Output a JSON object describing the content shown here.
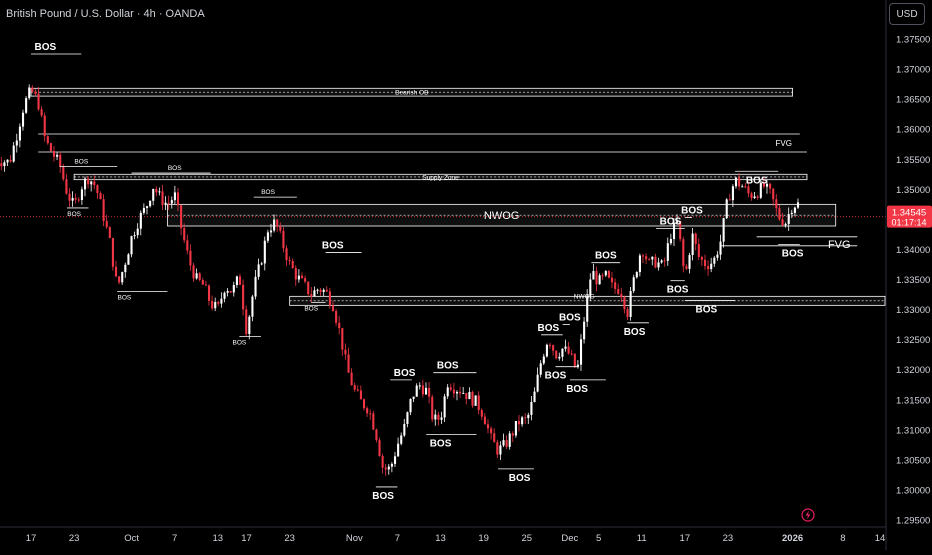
{
  "header": {
    "title": "British Pound / U.S. Dollar · 4h · OANDA",
    "currency": "USD"
  },
  "colors": {
    "background": "#000000",
    "up": "#ffffff",
    "down": "#f23645",
    "line": "#ffffff",
    "price_label_bg": "#f23645",
    "axis_text": "#d1d4dc",
    "flash_icon": "#e91e63"
  },
  "icons": [
    "flash-icon"
  ],
  "chart_data": {
    "type": "candlestick",
    "title": "British Pound / U.S. Dollar · 4h · OANDA",
    "y_axis": {
      "ticks": [
        1.375,
        1.37,
        1.365,
        1.36,
        1.355,
        1.35,
        1.34,
        1.335,
        1.33,
        1.325,
        1.32,
        1.315,
        1.31,
        1.305,
        1.3,
        1.295
      ],
      "tick_labels": [
        "1.37500",
        "1.37000",
        "1.36500",
        "1.36000",
        "1.35500",
        "1.35000",
        "1.34000",
        "1.33500",
        "1.33000",
        "1.32500",
        "1.32000",
        "1.31500",
        "1.31000",
        "1.30500",
        "1.30000",
        "1.29500"
      ],
      "range": [
        1.2942,
        1.3785
      ]
    },
    "x_axis": {
      "tick_labels": [
        "17",
        "23",
        "Oct",
        "7",
        "13",
        "17",
        "23",
        "Nov",
        "7",
        "13",
        "19",
        "25",
        "Dec",
        "5",
        "11",
        "17",
        "23",
        "2026",
        "8",
        "14"
      ],
      "tick_dates": [
        "2025-09-17",
        "2025-09-23",
        "2025-10-01",
        "2025-10-07",
        "2025-10-13",
        "2025-10-17",
        "2025-10-23",
        "2025-11-01",
        "2025-11-07",
        "2025-11-13",
        "2025-11-19",
        "2025-11-25",
        "2025-12-01",
        "2025-12-05",
        "2025-12-11",
        "2025-12-17",
        "2025-12-23",
        "2026-01-01",
        "2026-01-08",
        "2026-01-14"
      ],
      "bold_labels": [
        "2026"
      ]
    },
    "current_price": {
      "value": 1.34545,
      "label": "1.34545",
      "countdown": "01:17:14"
    },
    "path": [
      [
        "2025-09-12",
        1.355
      ],
      [
        "2025-09-14",
        1.3545
      ],
      [
        "2025-09-15",
        1.359
      ],
      [
        "2025-09-16",
        1.364
      ],
      [
        "2025-09-17",
        1.3665
      ],
      [
        "2025-09-18",
        1.3645
      ],
      [
        "2025-09-19",
        1.358
      ],
      [
        "2025-09-21",
        1.354
      ],
      [
        "2025-09-22",
        1.3495
      ],
      [
        "2025-09-23",
        1.347
      ],
      [
        "2025-09-24",
        1.3505
      ],
      [
        "2025-09-25",
        1.352
      ],
      [
        "2025-09-26",
        1.3505
      ],
      [
        "2025-09-27",
        1.346
      ],
      [
        "2025-09-28",
        1.341
      ],
      [
        "2025-09-29",
        1.3335
      ],
      [
        "2025-09-30",
        1.3375
      ],
      [
        "2025-10-01",
        1.342
      ],
      [
        "2025-10-02",
        1.345
      ],
      [
        "2025-10-03",
        1.347
      ],
      [
        "2025-10-04",
        1.3505
      ],
      [
        "2025-10-05",
        1.3485
      ],
      [
        "2025-10-06",
        1.3475
      ],
      [
        "2025-10-07",
        1.349
      ],
      [
        "2025-10-08",
        1.343
      ],
      [
        "2025-10-09",
        1.338
      ],
      [
        "2025-10-10",
        1.335
      ],
      [
        "2025-10-11",
        1.334
      ],
      [
        "2025-10-12",
        1.331
      ],
      [
        "2025-10-13",
        1.33
      ],
      [
        "2025-10-14",
        1.334
      ],
      [
        "2025-10-15",
        1.333
      ],
      [
        "2025-10-16",
        1.3355
      ],
      [
        "2025-10-17",
        1.3265
      ],
      [
        "2025-10-18",
        1.3335
      ],
      [
        "2025-10-19",
        1.338
      ],
      [
        "2025-10-20",
        1.3435
      ],
      [
        "2025-10-21",
        1.3445
      ],
      [
        "2025-10-22",
        1.341
      ],
      [
        "2025-10-23",
        1.3375
      ],
      [
        "2025-10-24",
        1.3355
      ],
      [
        "2025-10-25",
        1.334
      ],
      [
        "2025-10-26",
        1.3325
      ],
      [
        "2025-10-27",
        1.3335
      ],
      [
        "2025-10-28",
        1.333
      ],
      [
        "2025-10-29",
        1.331
      ],
      [
        "2025-10-30",
        1.326
      ],
      [
        "2025-10-31",
        1.32
      ],
      [
        "2025-11-01",
        1.3165
      ],
      [
        "2025-11-02",
        1.3145
      ],
      [
        "2025-11-03",
        1.3135
      ],
      [
        "2025-11-04",
        1.3095
      ],
      [
        "2025-11-05",
        1.3035
      ],
      [
        "2025-11-06",
        1.3035
      ],
      [
        "2025-11-07",
        1.3075
      ],
      [
        "2025-11-08",
        1.3105
      ],
      [
        "2025-11-09",
        1.3155
      ],
      [
        "2025-11-10",
        1.3175
      ],
      [
        "2025-11-11",
        1.3165
      ],
      [
        "2025-11-12",
        1.3115
      ],
      [
        "2025-11-13",
        1.312
      ],
      [
        "2025-11-14",
        1.318
      ],
      [
        "2025-11-15",
        1.317
      ],
      [
        "2025-11-16",
        1.3165
      ],
      [
        "2025-11-17",
        1.3155
      ],
      [
        "2025-11-18",
        1.3145
      ],
      [
        "2025-11-19",
        1.3125
      ],
      [
        "2025-11-20",
        1.3085
      ],
      [
        "2025-11-21",
        1.3065
      ],
      [
        "2025-11-22",
        1.3075
      ],
      [
        "2025-11-23",
        1.3095
      ],
      [
        "2025-11-24",
        1.3115
      ],
      [
        "2025-11-25",
        1.3115
      ],
      [
        "2025-11-26",
        1.3155
      ],
      [
        "2025-11-27",
        1.3215
      ],
      [
        "2025-11-28",
        1.3255
      ],
      [
        "2025-11-29",
        1.3225
      ],
      [
        "2025-11-30",
        1.3235
      ],
      [
        "2025-12-01",
        1.3225
      ],
      [
        "2025-12-02",
        1.3195
      ],
      [
        "2025-12-03",
        1.3285
      ],
      [
        "2025-12-04",
        1.3365
      ],
      [
        "2025-12-05",
        1.3345
      ],
      [
        "2025-12-06",
        1.3355
      ],
      [
        "2025-12-07",
        1.3335
      ],
      [
        "2025-12-08",
        1.3335
      ],
      [
        "2025-12-09",
        1.3295
      ],
      [
        "2025-12-10",
        1.3355
      ],
      [
        "2025-12-11",
        1.3405
      ],
      [
        "2025-12-12",
        1.3375
      ],
      [
        "2025-12-13",
        1.338
      ],
      [
        "2025-12-14",
        1.337
      ],
      [
        "2025-12-15",
        1.3425
      ],
      [
        "2025-12-16",
        1.3445
      ],
      [
        "2025-12-17",
        1.335
      ],
      [
        "2025-12-18",
        1.3425
      ],
      [
        "2025-12-19",
        1.3385
      ],
      [
        "2025-12-20",
        1.3375
      ],
      [
        "2025-12-21",
        1.338
      ],
      [
        "2025-12-22",
        1.3415
      ],
      [
        "2025-12-23",
        1.3485
      ],
      [
        "2025-12-24",
        1.3515
      ],
      [
        "2025-12-25",
        1.3505
      ],
      [
        "2025-12-26",
        1.349
      ],
      [
        "2025-12-27",
        1.3495
      ],
      [
        "2025-12-28",
        1.3505
      ],
      [
        "2025-12-29",
        1.349
      ],
      [
        "2025-12-30",
        1.3455
      ],
      [
        "2025-12-31",
        1.3445
      ],
      [
        "2026-01-01",
        1.3475
      ]
    ],
    "zones": [
      {
        "name": "bearish-ob-zone",
        "label": "Bearish OB",
        "x": [
          "2025-09-17",
          "2026-01-01"
        ],
        "y": [
          1.3655,
          1.3668
        ],
        "dashed_mid": true
      },
      {
        "name": "supply-zone",
        "label": "Supply Zone",
        "x": [
          "2025-09-23",
          "2026-01-03"
        ],
        "y": [
          1.3516,
          1.3525
        ],
        "dashed_mid": true
      },
      {
        "name": "nwog-zone",
        "label": "NWOG",
        "x": [
          "2025-10-06",
          "2026-01-07"
        ],
        "y": [
          1.3439,
          1.3475
        ],
        "dashed_mid": true
      },
      {
        "name": "nwog-small-zone",
        "label": "NWOG",
        "x": [
          "2025-10-23",
          "2026-01-15"
        ],
        "y": [
          1.3307,
          1.3322
        ],
        "dashed_mid": true
      }
    ],
    "lines": [
      {
        "name": "fvg-line-upper",
        "label": "FVG",
        "x": [
          "2025-09-18",
          "2026-01-02"
        ],
        "y": 1.3592
      },
      {
        "name": "fvg-line-upper-2",
        "label": "",
        "x": [
          "2025-09-18",
          "2026-01-03"
        ],
        "y": 1.3562
      },
      {
        "name": "fvg-line-lower",
        "label": "FVG",
        "x": [
          "2025-12-27",
          "2026-01-10"
        ],
        "y": 1.3421
      },
      {
        "name": "fvg-line-lower-2",
        "label": "",
        "x": [
          "2025-12-22",
          "2026-01-10"
        ],
        "y": 1.3406
      }
    ],
    "bos_markers": [
      {
        "label": "BOS",
        "x": [
          "2025-09-17",
          "2025-09-24"
        ],
        "y": 1.3725,
        "text_at": "2025-09-19",
        "pos": "above",
        "size": "large"
      },
      {
        "label": "BOS",
        "x": [
          "2025-09-21",
          "2025-09-29"
        ],
        "y": 1.3538,
        "text_at": "2025-09-24",
        "pos": "above",
        "size": "small"
      },
      {
        "label": "BOS",
        "x": [
          "2025-09-22",
          "2025-09-25"
        ],
        "y": 1.3469,
        "text_at": "2025-09-23",
        "pos": "below",
        "size": "small"
      },
      {
        "label": "BOS",
        "x": [
          "2025-10-01",
          "2025-10-12"
        ],
        "y": 1.3527,
        "text_at": "2025-10-07",
        "pos": "above",
        "size": "small"
      },
      {
        "label": "BOS",
        "x": [
          "2025-09-29",
          "2025-10-06"
        ],
        "y": 1.333,
        "text_at": "2025-09-30",
        "pos": "below",
        "size": "small"
      },
      {
        "label": "BOS",
        "x": [
          "2025-10-18",
          "2025-10-24"
        ],
        "y": 1.3487,
        "text_at": "2025-10-20",
        "pos": "above",
        "size": "small"
      },
      {
        "label": "BOS",
        "x": [
          "2025-10-16",
          "2025-10-19"
        ],
        "y": 1.3255,
        "text_at": "2025-10-16",
        "pos": "below",
        "size": "small"
      },
      {
        "label": "BOS",
        "x": [
          "2025-10-28",
          "2025-11-02"
        ],
        "y": 1.3395,
        "text_at": "2025-10-29",
        "pos": "above",
        "size": "large"
      },
      {
        "label": "BOS",
        "x": [
          "2025-10-26",
          "2025-10-28"
        ],
        "y": 1.3312,
        "text_at": "2025-10-26",
        "pos": "below",
        "size": "small"
      },
      {
        "label": "BOS",
        "x": [
          "2025-11-06",
          "2025-11-09"
        ],
        "y": 1.3183,
        "text_at": "2025-11-08",
        "pos": "above",
        "size": "large"
      },
      {
        "label": "BOS",
        "x": [
          "2025-11-04",
          "2025-11-07"
        ],
        "y": 1.3005,
        "text_at": "2025-11-05",
        "pos": "below",
        "size": "large"
      },
      {
        "label": "BOS",
        "x": [
          "2025-11-12",
          "2025-11-18"
        ],
        "y": 1.3195,
        "text_at": "2025-11-14",
        "pos": "above",
        "size": "large"
      },
      {
        "label": "BOS",
        "x": [
          "2025-11-11",
          "2025-11-18"
        ],
        "y": 1.3092,
        "text_at": "2025-11-13",
        "pos": "below",
        "size": "large"
      },
      {
        "label": "BOS",
        "x": [
          "2025-11-21",
          "2025-11-26"
        ],
        "y": 1.3035,
        "text_at": "2025-11-24",
        "pos": "below",
        "size": "large"
      },
      {
        "label": "BOS",
        "x": [
          "2025-11-27",
          "2025-11-30"
        ],
        "y": 1.3258,
        "text_at": "2025-11-28",
        "pos": "above",
        "size": "large"
      },
      {
        "label": "BOS",
        "x": [
          "2025-11-29",
          "2025-12-02"
        ],
        "y": 1.3205,
        "text_at": "2025-11-29",
        "pos": "below",
        "size": "large"
      },
      {
        "label": "BOS",
        "x": [
          "2025-11-30",
          "2025-12-01"
        ],
        "y": 1.3275,
        "text_at": "2025-12-01",
        "pos": "above",
        "size": "large"
      },
      {
        "label": "BOS",
        "x": [
          "2025-12-01",
          "2025-12-06"
        ],
        "y": 1.3183,
        "text_at": "2025-12-02",
        "pos": "below",
        "size": "large"
      },
      {
        "label": "BOS",
        "x": [
          "2025-12-04",
          "2025-12-08"
        ],
        "y": 1.3378,
        "text_at": "2025-12-06",
        "pos": "above",
        "size": "large"
      },
      {
        "label": "BOS",
        "x": [
          "2025-12-09",
          "2025-12-12"
        ],
        "y": 1.3278,
        "text_at": "2025-12-10",
        "pos": "below",
        "size": "large"
      },
      {
        "label": "BOS",
        "x": [
          "2025-12-13",
          "2025-12-17"
        ],
        "y": 1.3435,
        "text_at": "2025-12-15",
        "pos": "above",
        "size": "large"
      },
      {
        "label": "BOS",
        "x": [
          "2025-12-17",
          "2025-12-18"
        ],
        "y": 1.3453,
        "text_at": "2025-12-18",
        "pos": "above",
        "size": "large"
      },
      {
        "label": "BOS",
        "x": [
          "2025-12-15",
          "2025-12-17"
        ],
        "y": 1.3348,
        "text_at": "2025-12-16",
        "pos": "below",
        "size": "large"
      },
      {
        "label": "BOS",
        "x": [
          "2025-12-17",
          "2025-12-24"
        ],
        "y": 1.3315,
        "text_at": "2025-12-20",
        "pos": "below",
        "size": "large"
      },
      {
        "label": "BOS",
        "x": [
          "2025-12-24",
          "2025-12-30"
        ],
        "y": 1.353,
        "text_at": "2025-12-27",
        "pos": "below",
        "size": "large"
      },
      {
        "label": "BOS",
        "x": [
          "2025-12-30",
          "2026-01-02"
        ],
        "y": 1.3408,
        "text_at": "2026-01-01",
        "pos": "below",
        "size": "large"
      }
    ],
    "grid": false,
    "legend": "none"
  }
}
